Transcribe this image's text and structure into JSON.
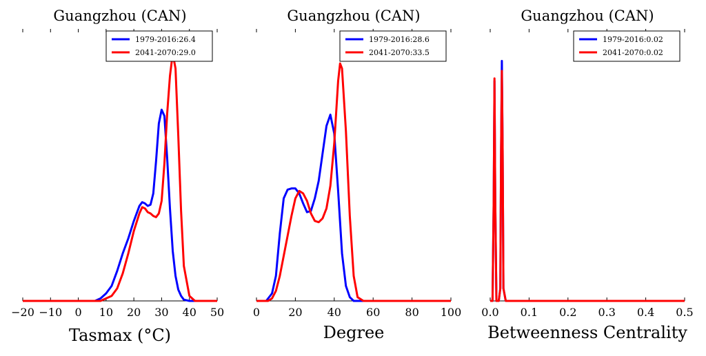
{
  "chart_data": [
    {
      "type": "line",
      "title": "Guangzhou (CAN)",
      "xlabel": "Tasmax ($^\\circ$C)",
      "xlabel_display": "Tasmax (°C)",
      "ylabel": "",
      "xlim": [
        -20,
        50
      ],
      "xticks": [
        -20,
        -10,
        0,
        10,
        20,
        30,
        40,
        50
      ],
      "xtick_labels": [
        "−20",
        "−10",
        "0",
        "10",
        "20",
        "30",
        "40",
        "50"
      ],
      "ylim": [
        0,
        1.0
      ],
      "legend_position": "top-right",
      "series": [
        {
          "name": "1979-2016:26.4",
          "color": "#0000ff",
          "x": [
            -20,
            6,
            8,
            10,
            12,
            14,
            16,
            18,
            20,
            22,
            23,
            24,
            25,
            26,
            27,
            28,
            29,
            30,
            31,
            32,
            33,
            34,
            35,
            36,
            37,
            38,
            40,
            50
          ],
          "y": [
            0,
            0,
            0.01,
            0.03,
            0.06,
            0.12,
            0.19,
            0.25,
            0.32,
            0.38,
            0.395,
            0.39,
            0.38,
            0.385,
            0.43,
            0.56,
            0.71,
            0.765,
            0.74,
            0.57,
            0.37,
            0.2,
            0.1,
            0.045,
            0.02,
            0.005,
            0,
            0
          ]
        },
        {
          "name": "2041-2070:29.0",
          "color": "#ff0000",
          "x": [
            -20,
            8,
            10,
            12,
            14,
            16,
            18,
            20,
            22,
            23,
            24,
            25,
            26,
            27,
            28,
            29,
            30,
            31,
            32,
            33,
            34,
            35,
            36,
            37,
            38,
            40,
            42,
            50
          ],
          "y": [
            0,
            0,
            0.01,
            0.02,
            0.05,
            0.11,
            0.19,
            0.28,
            0.35,
            0.375,
            0.37,
            0.355,
            0.35,
            0.34,
            0.335,
            0.35,
            0.4,
            0.55,
            0.75,
            0.9,
            0.99,
            0.93,
            0.66,
            0.36,
            0.14,
            0.02,
            0,
            0
          ]
        }
      ]
    },
    {
      "type": "line",
      "title": "Guangzhou (CAN)",
      "xlabel": "Degree",
      "ylabel": "",
      "xlim": [
        0,
        100
      ],
      "xticks": [
        0,
        20,
        40,
        60,
        80,
        100
      ],
      "xtick_labels": [
        "0",
        "20",
        "40",
        "60",
        "80",
        "100"
      ],
      "ylim": [
        0,
        1.0
      ],
      "legend_position": "top-right",
      "series": [
        {
          "name": "1979-2016:28.6",
          "color": "#0000ff",
          "x": [
            0,
            5,
            8,
            10,
            12,
            14,
            16,
            18,
            20,
            22,
            24,
            26,
            28,
            30,
            32,
            34,
            36,
            38,
            40,
            42,
            44,
            46,
            48,
            50,
            100
          ],
          "y": [
            0,
            0,
            0.03,
            0.1,
            0.27,
            0.41,
            0.445,
            0.45,
            0.45,
            0.43,
            0.39,
            0.355,
            0.36,
            0.41,
            0.48,
            0.59,
            0.7,
            0.745,
            0.67,
            0.44,
            0.19,
            0.06,
            0.015,
            0,
            0
          ]
        },
        {
          "name": "2041-2070:33.5",
          "color": "#ff0000",
          "x": [
            0,
            6,
            8,
            10,
            12,
            14,
            16,
            18,
            20,
            22,
            24,
            26,
            28,
            30,
            32,
            34,
            36,
            38,
            40,
            42,
            43,
            44,
            46,
            48,
            50,
            52,
            55,
            100
          ],
          "y": [
            0,
            0,
            0.01,
            0.04,
            0.1,
            0.18,
            0.26,
            0.34,
            0.41,
            0.44,
            0.43,
            0.4,
            0.35,
            0.32,
            0.315,
            0.33,
            0.37,
            0.46,
            0.63,
            0.88,
            0.95,
            0.93,
            0.68,
            0.34,
            0.1,
            0.015,
            0,
            0
          ]
        }
      ]
    },
    {
      "type": "line",
      "title": "Guangzhou (CAN)",
      "xlabel": "Betweenness Centrality",
      "ylabel": "",
      "xlim": [
        0,
        0.5
      ],
      "xticks": [
        0.0,
        0.1,
        0.2,
        0.3,
        0.4,
        0.5
      ],
      "xtick_labels": [
        "0.0",
        "0.1",
        "0.2",
        "0.3",
        "0.4",
        "0.5"
      ],
      "ylim": [
        0,
        1.0
      ],
      "legend_position": "top-right",
      "series": [
        {
          "name": "1979-2016:0.02",
          "color": "#0000ff",
          "x": [
            0,
            0.006,
            0.009,
            0.011,
            0.013,
            0.016,
            0.022,
            0.026,
            0.028,
            0.03,
            0.032,
            0.034,
            0.04,
            0.5
          ],
          "y": [
            0,
            0,
            0.4,
            0.88,
            0.4,
            0,
            0,
            0.05,
            0.6,
            0.96,
            0.6,
            0.05,
            0,
            0
          ]
        },
        {
          "name": "2041-2070:0.02",
          "color": "#ff0000",
          "x": [
            0,
            0.006,
            0.009,
            0.011,
            0.013,
            0.016,
            0.022,
            0.026,
            0.028,
            0.03,
            0.032,
            0.034,
            0.04,
            0.5
          ],
          "y": [
            0,
            0,
            0.4,
            0.89,
            0.4,
            0,
            0,
            0.05,
            0.6,
            0.92,
            0.6,
            0.05,
            0,
            0
          ]
        }
      ]
    }
  ]
}
